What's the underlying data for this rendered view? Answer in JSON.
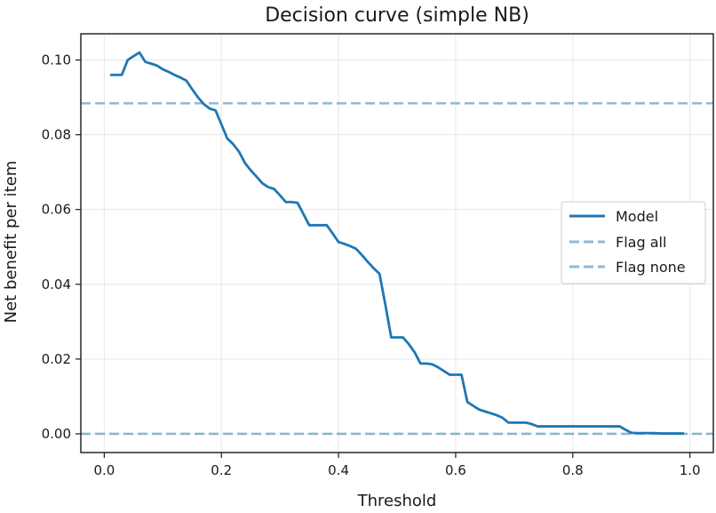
{
  "chart_data": {
    "type": "line",
    "title": "Decision curve (simple NB)",
    "xlabel": "Threshold",
    "ylabel": "Net benefit per item",
    "xlim": [
      -0.04,
      1.04
    ],
    "ylim": [
      -0.005,
      0.107
    ],
    "xticks": [
      0.0,
      0.2,
      0.4,
      0.6,
      0.8,
      1.0
    ],
    "xtick_labels": [
      "0.0",
      "0.2",
      "0.4",
      "0.6",
      "0.8",
      "1.0"
    ],
    "yticks": [
      0.0,
      0.02,
      0.04,
      0.06,
      0.08,
      0.1
    ],
    "ytick_labels": [
      "0.00",
      "0.02",
      "0.04",
      "0.06",
      "0.08",
      "0.10"
    ],
    "grid": true,
    "legend_position": "center-right",
    "series": [
      {
        "name": "Model",
        "style": "solid",
        "color": "#1f77b4",
        "x": [
          0.01,
          0.02,
          0.03,
          0.04,
          0.05,
          0.06,
          0.07,
          0.08,
          0.09,
          0.1,
          0.11,
          0.12,
          0.13,
          0.14,
          0.15,
          0.16,
          0.17,
          0.18,
          0.19,
          0.2,
          0.21,
          0.22,
          0.23,
          0.24,
          0.25,
          0.26,
          0.27,
          0.28,
          0.29,
          0.3,
          0.31,
          0.32,
          0.33,
          0.34,
          0.35,
          0.36,
          0.37,
          0.38,
          0.39,
          0.4,
          0.41,
          0.42,
          0.43,
          0.44,
          0.45,
          0.46,
          0.47,
          0.48,
          0.49,
          0.5,
          0.51,
          0.52,
          0.53,
          0.54,
          0.55,
          0.56,
          0.57,
          0.58,
          0.59,
          0.6,
          0.61,
          0.62,
          0.63,
          0.64,
          0.65,
          0.66,
          0.67,
          0.68,
          0.69,
          0.7,
          0.71,
          0.72,
          0.73,
          0.74,
          0.75,
          0.76,
          0.77,
          0.78,
          0.79,
          0.8,
          0.81,
          0.82,
          0.83,
          0.84,
          0.85,
          0.86,
          0.87,
          0.88,
          0.89,
          0.9,
          0.91,
          0.92,
          0.93,
          0.94,
          0.95,
          0.96,
          0.97,
          0.98,
          0.99
        ],
        "values": [
          0.096,
          0.096,
          0.096,
          0.1,
          0.101,
          0.102,
          0.0995,
          0.099,
          0.0985,
          0.0975,
          0.0968,
          0.096,
          0.0953,
          0.0945,
          0.0922,
          0.09,
          0.0882,
          0.087,
          0.0865,
          0.0828,
          0.079,
          0.0775,
          0.0755,
          0.0725,
          0.0705,
          0.0688,
          0.067,
          0.066,
          0.0655,
          0.0638,
          0.062,
          0.062,
          0.0618,
          0.0588,
          0.0558,
          0.0558,
          0.0558,
          0.0558,
          0.0536,
          0.0513,
          0.0508,
          0.0502,
          0.0495,
          0.0478,
          0.046,
          0.0443,
          0.0428,
          0.0345,
          0.0258,
          0.0258,
          0.0258,
          0.024,
          0.0218,
          0.0188,
          0.0188,
          0.0186,
          0.0178,
          0.0168,
          0.0158,
          0.0158,
          0.0158,
          0.0085,
          0.0075,
          0.0065,
          0.006,
          0.0055,
          0.005,
          0.0043,
          0.003,
          0.003,
          0.003,
          0.003,
          0.0026,
          0.002,
          0.002,
          0.002,
          0.002,
          0.002,
          0.002,
          0.002,
          0.002,
          0.002,
          0.002,
          0.002,
          0.002,
          0.002,
          0.002,
          0.002,
          0.0011,
          0.0003,
          0.0002,
          0.0002,
          0.0002,
          0.0002,
          0.0001,
          0.0001,
          0.0001,
          0.0001,
          0.0001
        ]
      },
      {
        "name": "Flag all",
        "style": "dashed",
        "color": "#1f77b4",
        "constant_y": 0.0884
      },
      {
        "name": "Flag none",
        "style": "dashed",
        "color": "#1f77b4",
        "constant_y": 0.0
      }
    ]
  }
}
